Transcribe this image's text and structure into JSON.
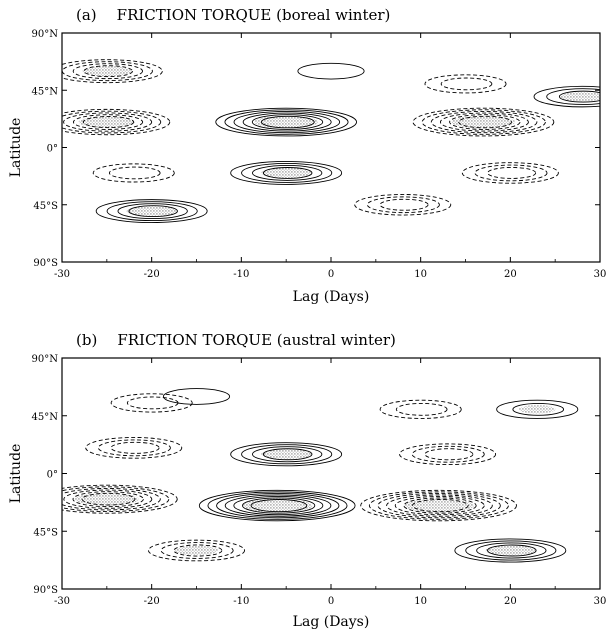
{
  "chart_data": [
    {
      "type": "contour",
      "panel_label": "(a)",
      "title": "FRICTION TORQUE (boreal winter)",
      "xlabel": "Lag (Days)",
      "ylabel": "Latitude",
      "xlim": [
        -30,
        30
      ],
      "ylim": [
        -90,
        90
      ],
      "x_ticks": [
        "-30",
        "-20",
        "-10",
        "0",
        "10",
        "20",
        "30"
      ],
      "y_ticks": [
        "90°N",
        "45°N",
        "0°",
        "45°S",
        "90°S"
      ],
      "contour_style": {
        "positive": "solid",
        "negative": "dashed",
        "shaded": "stippled extremes"
      },
      "features": [
        {
          "lag": -5,
          "lat": 20,
          "sign": "positive",
          "levels": 6,
          "shaded": true
        },
        {
          "lag": -25,
          "lat": 20,
          "sign": "negative",
          "levels": 5,
          "shaded": true
        },
        {
          "lag": 17,
          "lat": 20,
          "sign": "negative",
          "levels": 6,
          "shaded": true
        },
        {
          "lag": -5,
          "lat": -20,
          "sign": "positive",
          "levels": 4,
          "shaded": true
        },
        {
          "lag": -20,
          "lat": -50,
          "sign": "positive",
          "levels": 4,
          "shaded": true
        },
        {
          "lag": 8,
          "lat": -45,
          "sign": "negative",
          "levels": 3,
          "shaded": false
        },
        {
          "lag": 20,
          "lat": -20,
          "sign": "negative",
          "levels": 3,
          "shaded": false
        },
        {
          "lag": -25,
          "lat": 60,
          "sign": "negative",
          "levels": 4,
          "shaded": true
        },
        {
          "lag": 28,
          "lat": 40,
          "sign": "positive",
          "levels": 3,
          "shaded": true
        },
        {
          "lag": 0,
          "lat": 60,
          "sign": "positive",
          "levels": 1,
          "shaded": false
        },
        {
          "lag": 15,
          "lat": 50,
          "sign": "negative",
          "levels": 2,
          "shaded": false
        },
        {
          "lag": -22,
          "lat": -20,
          "sign": "negative",
          "levels": 2,
          "shaded": false
        }
      ]
    },
    {
      "type": "contour",
      "panel_label": "(b)",
      "title": "FRICTION TORQUE (austral winter)",
      "xlabel": "Lag (Days)",
      "ylabel": "Latitude",
      "xlim": [
        -30,
        30
      ],
      "ylim": [
        -90,
        90
      ],
      "x_ticks": [
        "-30",
        "-20",
        "-10",
        "0",
        "10",
        "20",
        "30"
      ],
      "y_ticks": [
        "90°N",
        "45°N",
        "0°",
        "45°S",
        "90°S"
      ],
      "contour_style": {
        "positive": "solid",
        "negative": "dashed",
        "shaded": "stippled extremes"
      },
      "features": [
        {
          "lag": -6,
          "lat": -25,
          "sign": "positive",
          "levels": 7,
          "shaded": true
        },
        {
          "lag": -5,
          "lat": 15,
          "sign": "positive",
          "levels": 4,
          "shaded": true
        },
        {
          "lag": 12,
          "lat": -25,
          "sign": "negative",
          "levels": 7,
          "shaded": true
        },
        {
          "lag": -25,
          "lat": -20,
          "sign": "negative",
          "levels": 6,
          "shaded": true
        },
        {
          "lag": -22,
          "lat": 20,
          "sign": "negative",
          "levels": 3,
          "shaded": false
        },
        {
          "lag": 13,
          "lat": 15,
          "sign": "negative",
          "levels": 3,
          "shaded": false
        },
        {
          "lag": -15,
          "lat": -60,
          "sign": "negative",
          "levels": 3,
          "shaded": true
        },
        {
          "lag": 20,
          "lat": -60,
          "sign": "positive",
          "levels": 4,
          "shaded": true
        },
        {
          "lag": 23,
          "lat": 50,
          "sign": "positive",
          "levels": 2,
          "shaded": true
        },
        {
          "lag": -15,
          "lat": 60,
          "sign": "positive",
          "levels": 1,
          "shaded": false
        },
        {
          "lag": -20,
          "lat": 55,
          "sign": "negative",
          "levels": 2,
          "shaded": false
        },
        {
          "lag": 10,
          "lat": 50,
          "sign": "negative",
          "levels": 2,
          "shaded": false
        }
      ]
    }
  ]
}
